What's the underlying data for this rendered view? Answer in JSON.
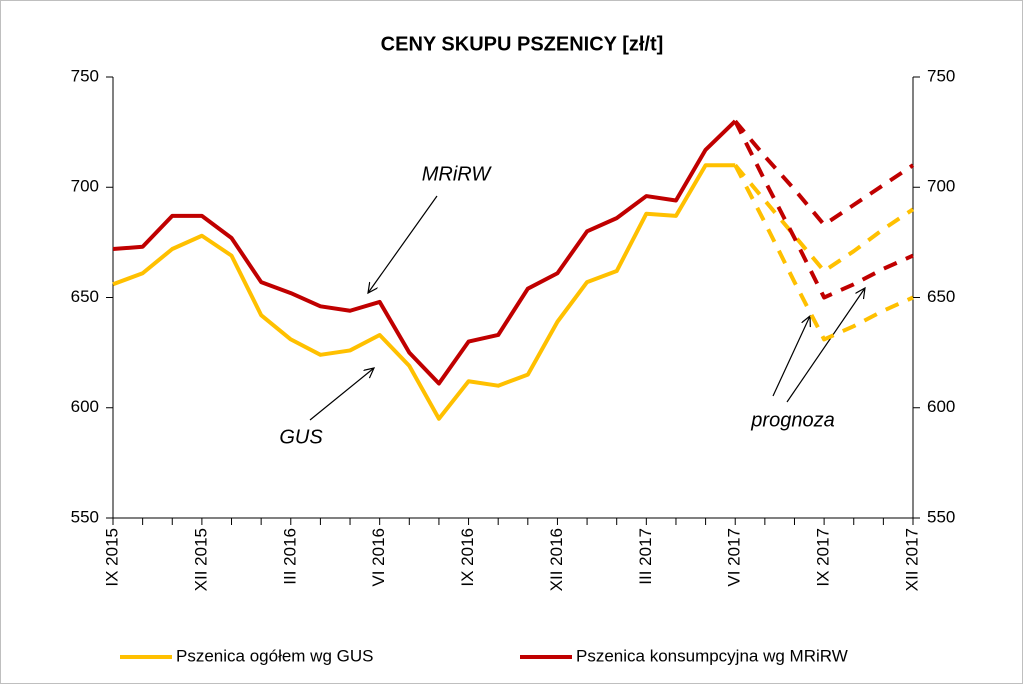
{
  "chart_data": {
    "type": "line",
    "title": "CENY SKUPU PSZENICY [zł/t]",
    "categories": [
      "IX 2015",
      null,
      null,
      "XII 2015",
      null,
      null,
      "III 2016",
      null,
      null,
      "VI 2016",
      null,
      null,
      "IX 2016",
      null,
      null,
      "XII 2016",
      null,
      null,
      "III 2017",
      null,
      null,
      "VI 2017",
      null,
      null,
      "IX 2017",
      null,
      null,
      "XII 2017"
    ],
    "series": [
      {
        "name": "Pszenica ogółem  wg GUS",
        "color": "#ffc000",
        "values": [
          656,
          661,
          672,
          678,
          669,
          642,
          631,
          624,
          626,
          633,
          619,
          595,
          612,
          610,
          615,
          639,
          657,
          662,
          688,
          687,
          710,
          710,
          null,
          null,
          null,
          null,
          null,
          null
        ]
      },
      {
        "name": "Pszenica konsumpcyjna wg MRiRW",
        "color": "#c00000",
        "values": [
          672,
          673,
          687,
          687,
          677,
          657,
          652,
          646,
          644,
          648,
          625,
          611,
          630,
          633,
          654,
          661,
          680,
          686,
          696,
          694,
          717,
          730,
          null,
          null,
          null,
          null,
          null,
          null
        ]
      },
      {
        "color": "#ffc000",
        "dashed": true,
        "values": [
          null,
          null,
          null,
          null,
          null,
          null,
          null,
          null,
          null,
          null,
          null,
          null,
          null,
          null,
          null,
          null,
          null,
          null,
          null,
          null,
          null,
          710,
          684,
          657,
          631,
          637,
          644,
          650
        ]
      },
      {
        "color": "#ffc000",
        "dashed": true,
        "values": [
          null,
          null,
          null,
          null,
          null,
          null,
          null,
          null,
          null,
          null,
          null,
          null,
          null,
          null,
          null,
          null,
          null,
          null,
          null,
          null,
          null,
          710,
          694,
          678,
          662,
          671,
          681,
          690
        ]
      },
      {
        "color": "#c00000",
        "dashed": true,
        "values": [
          null,
          null,
          null,
          null,
          null,
          null,
          null,
          null,
          null,
          null,
          null,
          null,
          null,
          null,
          null,
          null,
          null,
          null,
          null,
          null,
          null,
          730,
          703,
          677,
          650,
          656,
          663,
          669
        ]
      },
      {
        "color": "#c00000",
        "dashed": true,
        "values": [
          null,
          null,
          null,
          null,
          null,
          null,
          null,
          null,
          null,
          null,
          null,
          null,
          null,
          null,
          null,
          null,
          null,
          null,
          null,
          null,
          null,
          730,
          714,
          699,
          683,
          692,
          701,
          710
        ]
      }
    ],
    "ylim": [
      550,
      750
    ],
    "yticks": [
      550,
      600,
      650,
      700,
      750
    ],
    "y2lim": [
      550,
      750
    ],
    "y2ticks": [
      550,
      600,
      650,
      700,
      750
    ],
    "annotations": [
      "MRiRW",
      "GUS",
      "prognoza"
    ],
    "legend": "bottom"
  }
}
